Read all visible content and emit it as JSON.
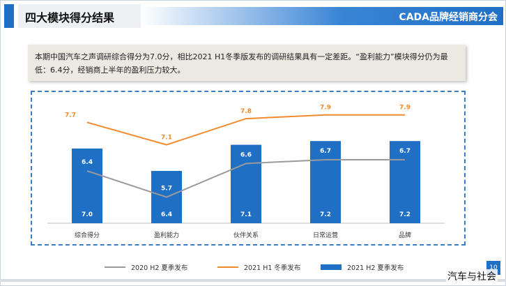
{
  "header": {
    "title": "四大模块得分结果",
    "org": "CADA品牌经销商分会"
  },
  "summary": {
    "text": "本期中国汽车之声调研综合得分为7.0分，相比2021 H1冬季版发布的调研结果具有一定差距。“盈利能力”模块得分仍为最低：6.4分，经销商上半年的盈利压力较大。"
  },
  "colors": {
    "accent": "#1f6fc5",
    "bar": "#1f6fc5",
    "h1_line": "#f08a2b",
    "h2_2020_line": "#9a9a9a"
  },
  "chart_data": {
    "type": "bar",
    "categories": [
      "综合得分",
      "盈利能力",
      "伙伴关系",
      "日常运营",
      "品牌"
    ],
    "ylim": [
      5,
      8.1
    ],
    "series": [
      {
        "name": "2020 H2 夏季发布",
        "type": "line",
        "values": [
          6.4,
          5.7,
          6.6,
          6.7,
          6.7
        ]
      },
      {
        "name": "2021 H1 冬季发布",
        "type": "line",
        "values": [
          7.7,
          7.1,
          7.8,
          7.9,
          7.9
        ]
      },
      {
        "name": "2021 H2 夏季发布",
        "type": "bar",
        "values": [
          7.0,
          6.4,
          7.1,
          7.2,
          7.2
        ]
      }
    ]
  },
  "labels": {
    "h2_2020": [
      "6.4",
      "5.7",
      "6.6",
      "6.7",
      "6.7"
    ],
    "h1_2021": [
      "7.7",
      "7.1",
      "7.8",
      "7.9",
      "7.9"
    ],
    "h2_2021": [
      "7.0",
      "6.4",
      "7.1",
      "7.2",
      "7.2"
    ]
  },
  "page_number": "10",
  "watermark": "汽车与社会"
}
